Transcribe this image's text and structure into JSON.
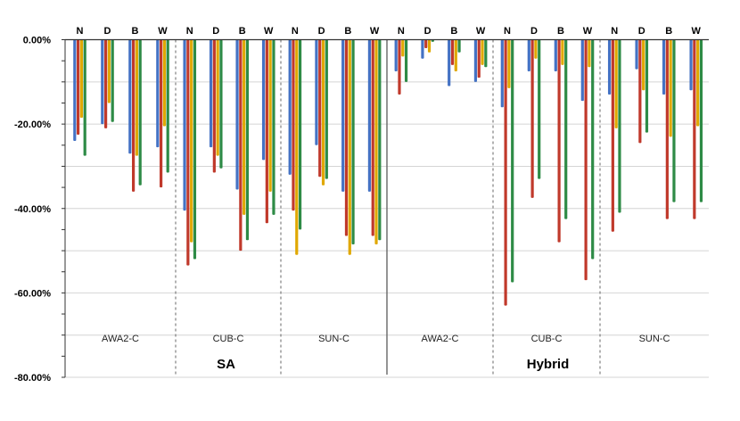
{
  "colors": {
    "N": "#4472c4",
    "D": "#c0392b",
    "B": "#e0a800",
    "W": "#2e8b46",
    "grid": "#d4d4d4",
    "axis": "#333333",
    "divider": "#666666"
  },
  "chart_data": {
    "type": "bar",
    "title": "",
    "xlabel": "",
    "ylabel": "",
    "ylim": [
      -80,
      0
    ],
    "yticks": [
      0,
      -20,
      -40,
      -60,
      -80
    ],
    "ytick_labels": [
      "0.00%",
      "-20.00%",
      "-40.00%",
      "-60.00%",
      "-80.00%"
    ],
    "grid": true,
    "legend": "none",
    "series_colors": [
      "N",
      "D",
      "B",
      "W"
    ],
    "groups": [
      {
        "name": "SA",
        "datasets": [
          {
            "name": "AWA2-C",
            "categories": [
              {
                "label": "N",
                "values": [
                  -24,
                  -22.5,
                  -18.5,
                  -27.5
                ]
              },
              {
                "label": "D",
                "values": [
                  -20,
                  -21,
                  -15,
                  -19.5
                ]
              },
              {
                "label": "B",
                "values": [
                  -27,
                  -36,
                  -27.5,
                  -34.5
                ]
              },
              {
                "label": "W",
                "values": [
                  -25.5,
                  -35,
                  -20.5,
                  -31.5
                ]
              }
            ]
          },
          {
            "name": "CUB-C",
            "categories": [
              {
                "label": "N",
                "values": [
                  -40.5,
                  -53.5,
                  -48,
                  -52
                ]
              },
              {
                "label": "D",
                "values": [
                  -25.5,
                  -31.5,
                  -27.5,
                  -30.5
                ]
              },
              {
                "label": "B",
                "values": [
                  -35.5,
                  -50,
                  -41.5,
                  -47.5
                ]
              },
              {
                "label": "W",
                "values": [
                  -28.5,
                  -43.5,
                  -36,
                  -41.5
                ]
              }
            ]
          },
          {
            "name": "SUN-C",
            "categories": [
              {
                "label": "N",
                "values": [
                  -32,
                  -40.5,
                  -51,
                  -45
                ]
              },
              {
                "label": "D",
                "values": [
                  -25,
                  -32.5,
                  -34.5,
                  -33
                ]
              },
              {
                "label": "B",
                "values": [
                  -36,
                  -46.5,
                  -51,
                  -48.5
                ]
              },
              {
                "label": "W",
                "values": [
                  -36,
                  -46.5,
                  -48.5,
                  -47.5
                ]
              }
            ]
          }
        ]
      },
      {
        "name": "Hybrid",
        "datasets": [
          {
            "name": "AWA2-C",
            "categories": [
              {
                "label": "N",
                "values": [
                  -7.5,
                  -13,
                  -4,
                  -10
                ]
              },
              {
                "label": "D",
                "values": [
                  -4.5,
                  -2,
                  -3,
                  -0.5
                ]
              },
              {
                "label": "B",
                "values": [
                  -11,
                  -6,
                  -7.5,
                  -3
                ]
              },
              {
                "label": "W",
                "values": [
                  -10,
                  -9,
                  -6,
                  -6.5
                ]
              }
            ]
          },
          {
            "name": "CUB-C",
            "categories": [
              {
                "label": "N",
                "values": [
                  -16,
                  -63,
                  -11.5,
                  -57.5
                ]
              },
              {
                "label": "D",
                "values": [
                  -7.5,
                  -37.5,
                  -4.5,
                  -33
                ]
              },
              {
                "label": "B",
                "values": [
                  -7.5,
                  -48,
                  -6,
                  -42.5
                ]
              },
              {
                "label": "W",
                "values": [
                  -14.5,
                  -57,
                  -6.5,
                  -52
                ]
              }
            ]
          },
          {
            "name": "SUN-C",
            "categories": [
              {
                "label": "N",
                "values": [
                  -13,
                  -45.5,
                  -21,
                  -41
                ]
              },
              {
                "label": "D",
                "values": [
                  -7,
                  -24.5,
                  -12,
                  -22
                ]
              },
              {
                "label": "B",
                "values": [
                  -13,
                  -42.5,
                  -23,
                  -38.5
                ]
              },
              {
                "label": "W",
                "values": [
                  -12,
                  -42.5,
                  -20.5,
                  -38.5
                ]
              }
            ]
          }
        ]
      }
    ]
  }
}
